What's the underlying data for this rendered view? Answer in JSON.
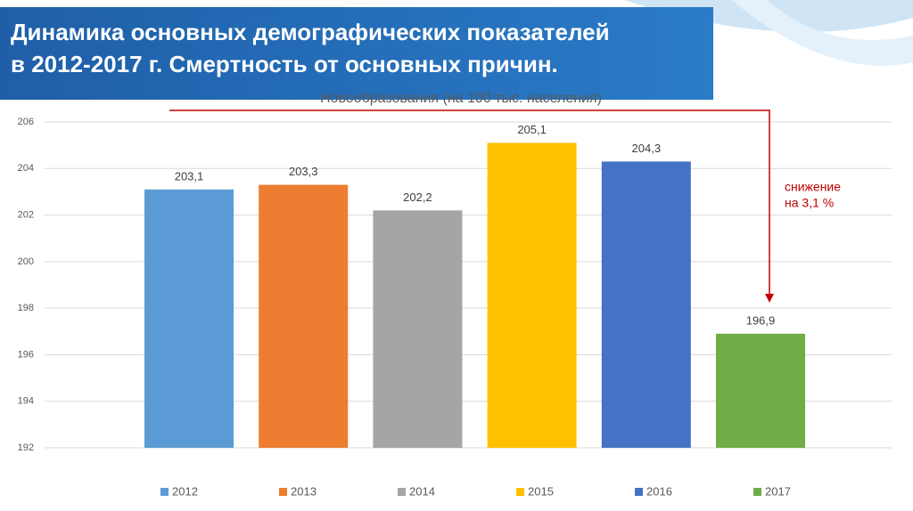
{
  "header": {
    "title": [
      "Динамика основных демографических показателей",
      "в 2012-2017 г. Смертность от основных причин."
    ]
  },
  "chart_data": {
    "type": "bar",
    "title": "Новообразования (на 100 тыс. населения)",
    "series": [
      {
        "name": "2012",
        "color": "#5b9bd5",
        "values": [
          203.1
        ],
        "value_labels": [
          "203,1"
        ]
      },
      {
        "name": "2013",
        "color": "#ed7d31",
        "values": [
          203.3
        ],
        "value_labels": [
          "203,3"
        ]
      },
      {
        "name": "2014",
        "color": "#a5a5a5",
        "values": [
          202.2
        ],
        "value_labels": [
          "202,2"
        ]
      },
      {
        "name": "2015",
        "color": "#ffc000",
        "values": [
          205.1
        ],
        "value_labels": [
          "205,1"
        ]
      },
      {
        "name": "2016",
        "color": "#4472c4",
        "values": [
          204.3
        ],
        "value_labels": [
          "204,3"
        ]
      },
      {
        "name": "2017",
        "color": "#70ad47",
        "values": [
          196.9
        ],
        "value_labels": [
          "196,9"
        ]
      }
    ],
    "ylim": [
      192,
      206
    ],
    "yticks": [
      192,
      194,
      196,
      198,
      200,
      202,
      204,
      206
    ],
    "grid": true,
    "annotation": [
      "снижение",
      "на 3,1 %"
    ]
  }
}
